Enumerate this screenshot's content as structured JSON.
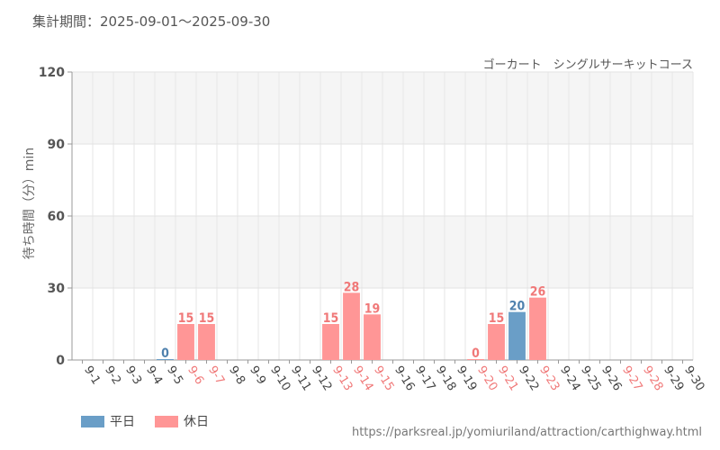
{
  "period_label": "集計期間：2025-09-01～2025-09-30",
  "chart_data": {
    "type": "bar",
    "title": "ゴーカート　シングルサーキットコース",
    "ylabel": "待ち時間（分）min",
    "ylim": [
      0,
      120
    ],
    "yticks": [
      0,
      30,
      60,
      90,
      120
    ],
    "grid": true,
    "categories": [
      "9-1",
      "9-2",
      "9-3",
      "9-4",
      "9-5",
      "9-6",
      "9-7",
      "9-8",
      "9-9",
      "9-10",
      "9-11",
      "9-12",
      "9-13",
      "9-14",
      "9-15",
      "9-16",
      "9-17",
      "9-18",
      "9-19",
      "9-20",
      "9-21",
      "9-22",
      "9-23",
      "9-24",
      "9-25",
      "9-26",
      "9-27",
      "9-28",
      "9-29",
      "9-30"
    ],
    "values": [
      null,
      null,
      null,
      null,
      0,
      15,
      15,
      null,
      null,
      null,
      null,
      null,
      15,
      28,
      19,
      null,
      null,
      null,
      null,
      0,
      15,
      20,
      26,
      null,
      null,
      null,
      null,
      null,
      null,
      null
    ],
    "day_type": [
      "weekday",
      "weekday",
      "weekday",
      "weekday",
      "weekday",
      "holiday",
      "holiday",
      "weekday",
      "weekday",
      "weekday",
      "weekday",
      "weekday",
      "holiday",
      "holiday",
      "holiday",
      "weekday",
      "weekday",
      "weekday",
      "weekday",
      "holiday",
      "holiday",
      "weekday",
      "holiday",
      "weekday",
      "weekday",
      "weekday",
      "holiday",
      "holiday",
      "weekday",
      "weekday"
    ],
    "legend": [
      {
        "name": "平日",
        "type": "weekday",
        "color": "#6a9ec7"
      },
      {
        "name": "休日",
        "type": "holiday",
        "color": "#ff9696"
      }
    ],
    "legend_position": "bottom-left",
    "colors": {
      "weekday_bar": "#6a9ec7",
      "holiday_bar": "#ff9696",
      "weekday_label": "#4f81ae",
      "holiday_label": "#f07878",
      "weekday_tick": "#444444",
      "holiday_tick": "#f07878"
    }
  },
  "source_url": "https://parksreal.jp/yomiuriland/attraction/carthighway.html"
}
